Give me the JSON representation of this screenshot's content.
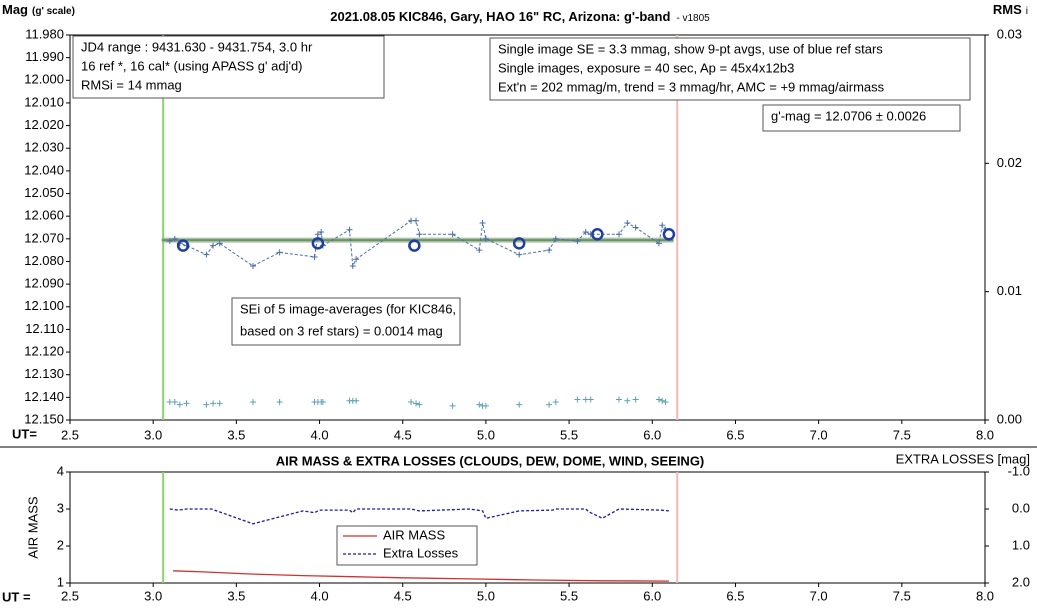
{
  "chart_data": [
    {
      "type": "scatter",
      "title": "2021.08.05 KIC846, Gary, HAO 16\" RC, Arizona: g'-band",
      "title_suffix": "- v1805",
      "y_label": "Mag",
      "y_label_sub": "(g' scale)",
      "y2_label": "RMS",
      "y2_label_sub": "i",
      "x_label": "UT=",
      "xlim": [
        2.5,
        8.0
      ],
      "xticks": [
        2.5,
        {
          "value": 3,
          "label": "3.0"
        },
        3.5,
        {
          "value": 4,
          "label": "4.0"
        },
        4.5,
        {
          "value": 5,
          "label": "5.0"
        },
        5.5,
        {
          "value": 6,
          "label": "6.0"
        },
        6.5,
        {
          "value": 7,
          "label": "7.0"
        },
        7.5,
        {
          "value": 8,
          "label": "8.0"
        }
      ],
      "ylim": [
        11.98,
        12.15
      ],
      "y_inverted": true,
      "yticks": [
        {
          "value": 11.98,
          "label": "11.980"
        },
        {
          "value": 11.99,
          "label": "11.990"
        },
        {
          "value": 12,
          "label": "12.000"
        },
        {
          "value": 12.01,
          "label": "12.010"
        },
        {
          "value": 12.02,
          "label": "12.020"
        },
        {
          "value": 12.03,
          "label": "12.030"
        },
        {
          "value": 12.04,
          "label": "12.040"
        },
        {
          "value": 12.05,
          "label": "12.050"
        },
        {
          "value": 12.06,
          "label": "12.060"
        },
        {
          "value": 12.07,
          "label": "12.070"
        },
        {
          "value": 12.08,
          "label": "12.080"
        },
        {
          "value": 12.09,
          "label": "12.090"
        },
        {
          "value": 12.1,
          "label": "12.100"
        },
        {
          "value": 12.11,
          "label": "12.110"
        },
        {
          "value": 12.12,
          "label": "12.120"
        },
        {
          "value": 12.13,
          "label": "12.130"
        },
        {
          "value": 12.14,
          "label": "12.140"
        },
        {
          "value": 12.15,
          "label": "12.150"
        }
      ],
      "y2lim": [
        0,
        0.03
      ],
      "y2ticks": [
        {
          "value": 0,
          "label": "0.00"
        },
        {
          "value": 0.01,
          "label": "0.01"
        },
        {
          "value": 0.02,
          "label": "0.02"
        },
        {
          "value": 0.03,
          "label": "0.03"
        }
      ],
      "series": [
        {
          "color": "#4a6fa5",
          "marker": "plus",
          "line": "dashed",
          "x": [
            3.1,
            3.13,
            3.16,
            3.2,
            3.32,
            3.36,
            3.4,
            3.6,
            3.76,
            3.97,
            3.99,
            4.01,
            4.02,
            4.18,
            4.2,
            4.22,
            4.55,
            4.58,
            4.6,
            4.8,
            4.96,
            4.98,
            5.0,
            5.2,
            5.38,
            5.42,
            5.55,
            5.6,
            5.63,
            5.8,
            5.85,
            5.9,
            6.04,
            6.06,
            6.08
          ],
          "values": [
            12.071,
            12.07,
            12.072,
            12.073,
            12.077,
            12.073,
            12.072,
            12.082,
            12.076,
            12.078,
            12.068,
            12.067,
            12.073,
            12.066,
            12.082,
            12.079,
            12.062,
            12.062,
            12.068,
            12.068,
            12.075,
            12.063,
            12.07,
            12.077,
            12.075,
            12.07,
            12.071,
            12.067,
            12.068,
            12.068,
            12.063,
            12.065,
            12.072,
            12.064,
            12.066
          ]
        },
        {
          "color": "#1f3fa0",
          "marker": "circle",
          "x": [
            3.18,
            3.99,
            4.57,
            5.2,
            5.67,
            6.1
          ],
          "values": [
            12.073,
            12.072,
            12.073,
            12.072,
            12.068,
            12.068
          ]
        },
        {
          "color": "#5fa0b0",
          "marker": "plus",
          "axis": "y2",
          "x": [
            3.1,
            3.13,
            3.16,
            3.2,
            3.32,
            3.36,
            3.4,
            3.6,
            3.76,
            3.97,
            3.99,
            4.01,
            4.02,
            4.18,
            4.2,
            4.22,
            4.55,
            4.58,
            4.6,
            4.8,
            4.96,
            4.98,
            5.0,
            5.2,
            5.38,
            5.42,
            5.55,
            5.6,
            5.63,
            5.8,
            5.85,
            5.9,
            6.04,
            6.06,
            6.08
          ],
          "values": [
            0.0014,
            0.0014,
            0.0012,
            0.0013,
            0.0012,
            0.0013,
            0.0013,
            0.0014,
            0.0014,
            0.0014,
            0.0014,
            0.0014,
            0.0014,
            0.0015,
            0.0015,
            0.0015,
            0.0014,
            0.0013,
            0.0012,
            0.0011,
            0.0012,
            0.0011,
            0.0011,
            0.0012,
            0.0012,
            0.0014,
            0.0016,
            0.0016,
            0.0016,
            0.0016,
            0.0015,
            0.0016,
            0.0016,
            0.0015,
            0.0014
          ]
        }
      ],
      "hlines": [
        {
          "value": 12.0706,
          "color": "#a8a8a8",
          "inner_color": "#5aa050"
        }
      ],
      "vlines": [
        {
          "value": 3.06,
          "color": "#8fd16a"
        },
        {
          "value": 6.15,
          "color": "#f4b8b8"
        }
      ],
      "info_left": [
        "JD4 range : 9431.630 - 9431.754,  3.0  hr",
        "16 ref *, 16 cal* (using APASS g' adj'd)",
        "RMSi = 14 mmag"
      ],
      "info_right": [
        "Single image SE = 3.3 mmag, show  9-pt avgs, use of blue ref stars",
        "Single images, exposure = 40 sec, Ap = 45x4x12b3",
        "Ext'n = 202 mmag/m, trend = 3 mmag/hr, AMC = +9 mmag/airmass"
      ],
      "result": "g'-mag = 12.0706 ± 0.0026",
      "sei_note": [
        "SEi of 5 image-averages (for KIC846,",
        "based on 3 ref stars) = 0.0014 mag"
      ]
    },
    {
      "type": "line",
      "title": "AIR MASS & EXTRA LOSSES (CLOUDS, DEW, DOME, WIND, SEEING)",
      "y_label": "AIR MASS",
      "y2_label": "EXTRA LOSSES [mag]",
      "x_label": "UT =",
      "xlim": [
        2.5,
        8.0
      ],
      "xticks": [
        2.5,
        {
          "value": 3,
          "label": "3.0"
        },
        3.5,
        {
          "value": 4,
          "label": "4.0"
        },
        4.5,
        {
          "value": 5,
          "label": "5.0"
        },
        5.5,
        {
          "value": 6,
          "label": "6.0"
        },
        6.5,
        {
          "value": 7,
          "label": "7.0"
        },
        7.5,
        {
          "value": 8,
          "label": "8.0"
        }
      ],
      "ylim": [
        1,
        4
      ],
      "yticks": [
        1,
        2,
        3,
        4
      ],
      "y2lim": [
        -1,
        2
      ],
      "y2_inverted": true,
      "y2ticks": [
        {
          "value": -1,
          "label": "-1.0"
        },
        {
          "value": 0,
          "label": "0.0"
        },
        {
          "value": 1,
          "label": "1.0"
        },
        {
          "value": 2,
          "label": "2.0"
        }
      ],
      "series": [
        {
          "name": "AIR MASS",
          "color": "#d03030",
          "x": [
            3.12,
            3.3,
            3.6,
            3.9,
            4.2,
            4.5,
            4.9,
            5.3,
            5.7,
            6.1
          ],
          "values": [
            1.33,
            1.3,
            1.24,
            1.2,
            1.17,
            1.14,
            1.11,
            1.08,
            1.06,
            1.05
          ]
        },
        {
          "name": "Extra Losses",
          "color": "#1a1aa0",
          "axis": "y2",
          "line": "dashed",
          "x": [
            3.1,
            3.15,
            3.2,
            3.35,
            3.6,
            3.9,
            3.97,
            4.0,
            4.18,
            4.2,
            4.22,
            4.55,
            4.6,
            4.9,
            4.98,
            5.0,
            5.2,
            5.4,
            5.42,
            5.6,
            5.62,
            5.7,
            5.8,
            6.05,
            6.1
          ],
          "values": [
            0.0,
            0.03,
            0.0,
            0.0,
            0.4,
            0.05,
            0.1,
            0.03,
            0.03,
            0.1,
            0.0,
            0.0,
            0.05,
            0.0,
            0.05,
            0.25,
            0.05,
            0.03,
            0.0,
            0.0,
            0.08,
            0.25,
            0.0,
            0.03,
            0.05
          ]
        }
      ],
      "vlines": [
        {
          "value": 3.06,
          "color": "#8fd16a"
        },
        {
          "value": 6.15,
          "color": "#f4b8b8"
        }
      ]
    }
  ]
}
